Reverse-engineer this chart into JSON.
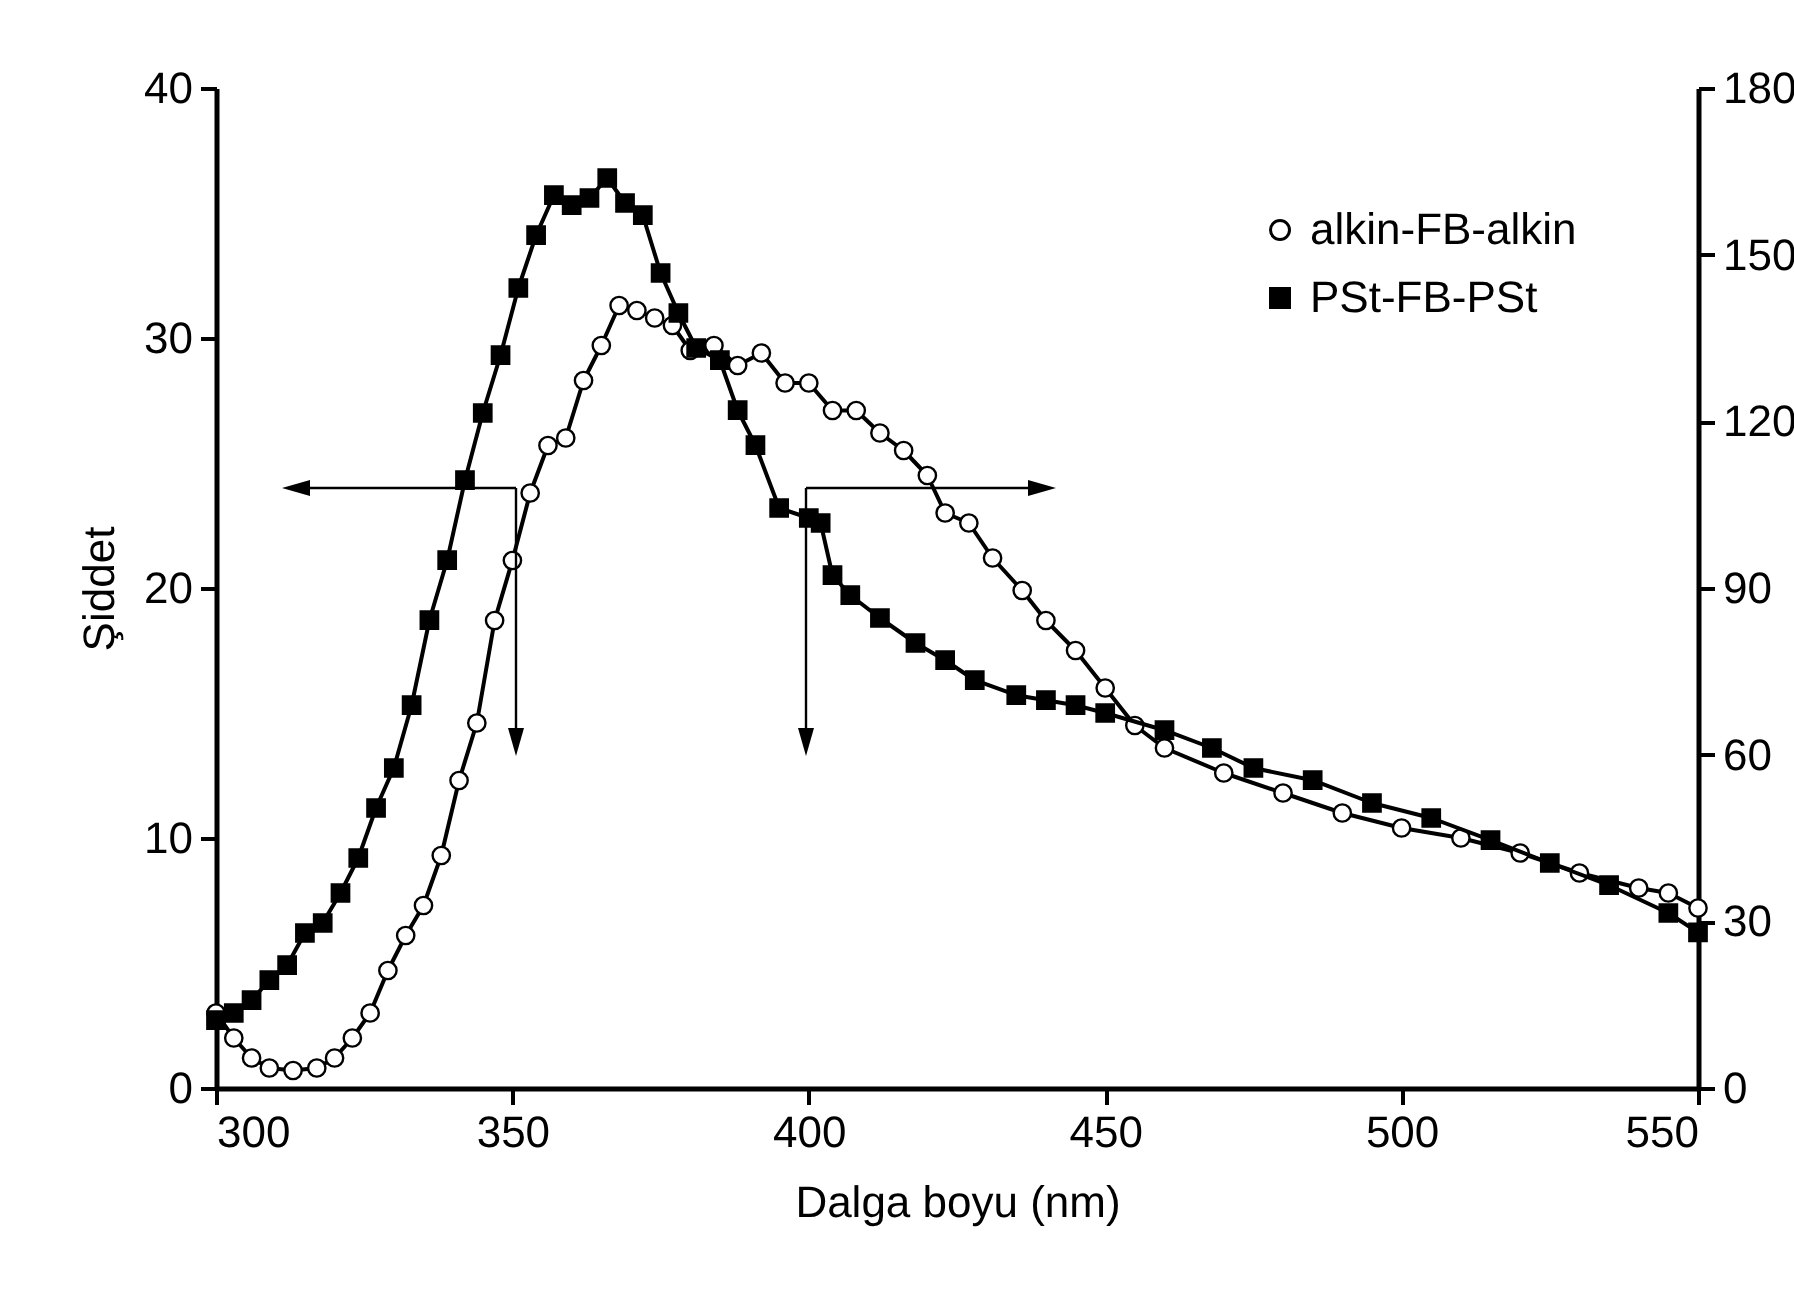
{
  "chart_data": {
    "type": "line",
    "xlabel": "Dalga boyu (nm)",
    "ylabel": "Şiddet",
    "xlim": [
      300,
      550
    ],
    "xticks": [
      300,
      350,
      400,
      450,
      500,
      550
    ],
    "ylim": [
      0,
      40
    ],
    "yticks": [
      0,
      10,
      20,
      30,
      40
    ],
    "y2lim": [
      0,
      180
    ],
    "y2ticks": [
      0,
      30,
      60,
      90,
      120,
      150,
      180
    ],
    "legend": "top right",
    "line_style": "solid",
    "series": [
      {
        "name": "alkin-FB-alkin",
        "color": "#000000",
        "marker": "circle",
        "x": [
          300,
          303,
          306,
          309,
          313,
          317,
          320,
          323,
          326,
          329,
          332,
          335,
          338,
          341,
          344,
          347,
          350,
          353,
          356,
          359,
          362,
          365,
          368,
          371,
          374,
          377,
          380,
          384,
          388,
          392,
          396,
          400,
          404,
          408,
          412,
          416,
          420,
          423,
          427,
          431,
          436,
          440,
          445,
          450,
          455,
          460,
          470,
          480,
          490,
          500,
          510,
          520,
          530,
          540,
          545,
          550
        ],
        "values": [
          3.0,
          2.0,
          1.2,
          0.8,
          0.7,
          0.8,
          1.2,
          2.0,
          3.0,
          4.7,
          6.1,
          7.3,
          9.3,
          12.3,
          14.6,
          18.7,
          21.1,
          23.8,
          25.7,
          26.0,
          28.3,
          29.7,
          31.3,
          31.1,
          30.8,
          30.5,
          29.5,
          29.7,
          28.9,
          29.4,
          28.2,
          28.2,
          27.1,
          27.1,
          26.2,
          25.5,
          24.5,
          23.0,
          22.6,
          21.2,
          19.9,
          18.7,
          17.5,
          16.0,
          14.5,
          13.6,
          12.6,
          11.8,
          11.0,
          10.4,
          10.0,
          9.4,
          8.6,
          8.0,
          7.8,
          7.2
        ]
      },
      {
        "name": "PSt-FB-PSt",
        "color": "#000000",
        "marker": "square",
        "axis": "y2",
        "x": [
          300,
          303,
          306,
          309,
          312,
          315,
          318,
          321,
          324,
          327,
          330,
          333,
          336,
          339,
          342,
          345,
          348,
          351,
          354,
          357,
          360,
          363,
          366,
          369,
          372,
          375,
          378,
          381,
          385,
          388,
          391,
          395,
          400,
          402,
          404,
          407,
          412,
          418,
          423,
          428,
          435,
          440,
          445,
          450,
          460,
          468,
          475,
          485,
          495,
          505,
          515,
          525,
          535,
          545,
          550
        ],
        "values": [
          12.2,
          13.5,
          15.8,
          19.4,
          22.1,
          27.9,
          29.7,
          35.1,
          41.4,
          50.4,
          57.6,
          68.9,
          84.2,
          95,
          109.4,
          121.5,
          131.9,
          144,
          153.5,
          160.7,
          158.9,
          160.2,
          163.8,
          159.3,
          157.1,
          146.7,
          139.5,
          133.2,
          131,
          122,
          115.7,
          104.4,
          102.6,
          101.7,
          92.3,
          88.7,
          84.6,
          80.1,
          77,
          73.4,
          70.7,
          69.8,
          68.9,
          67.5,
          64.4,
          61.2,
          57.6,
          55.4,
          51.3,
          48.6,
          44.6,
          40.5,
          36.5,
          31.5,
          28
        ]
      }
    ]
  }
}
